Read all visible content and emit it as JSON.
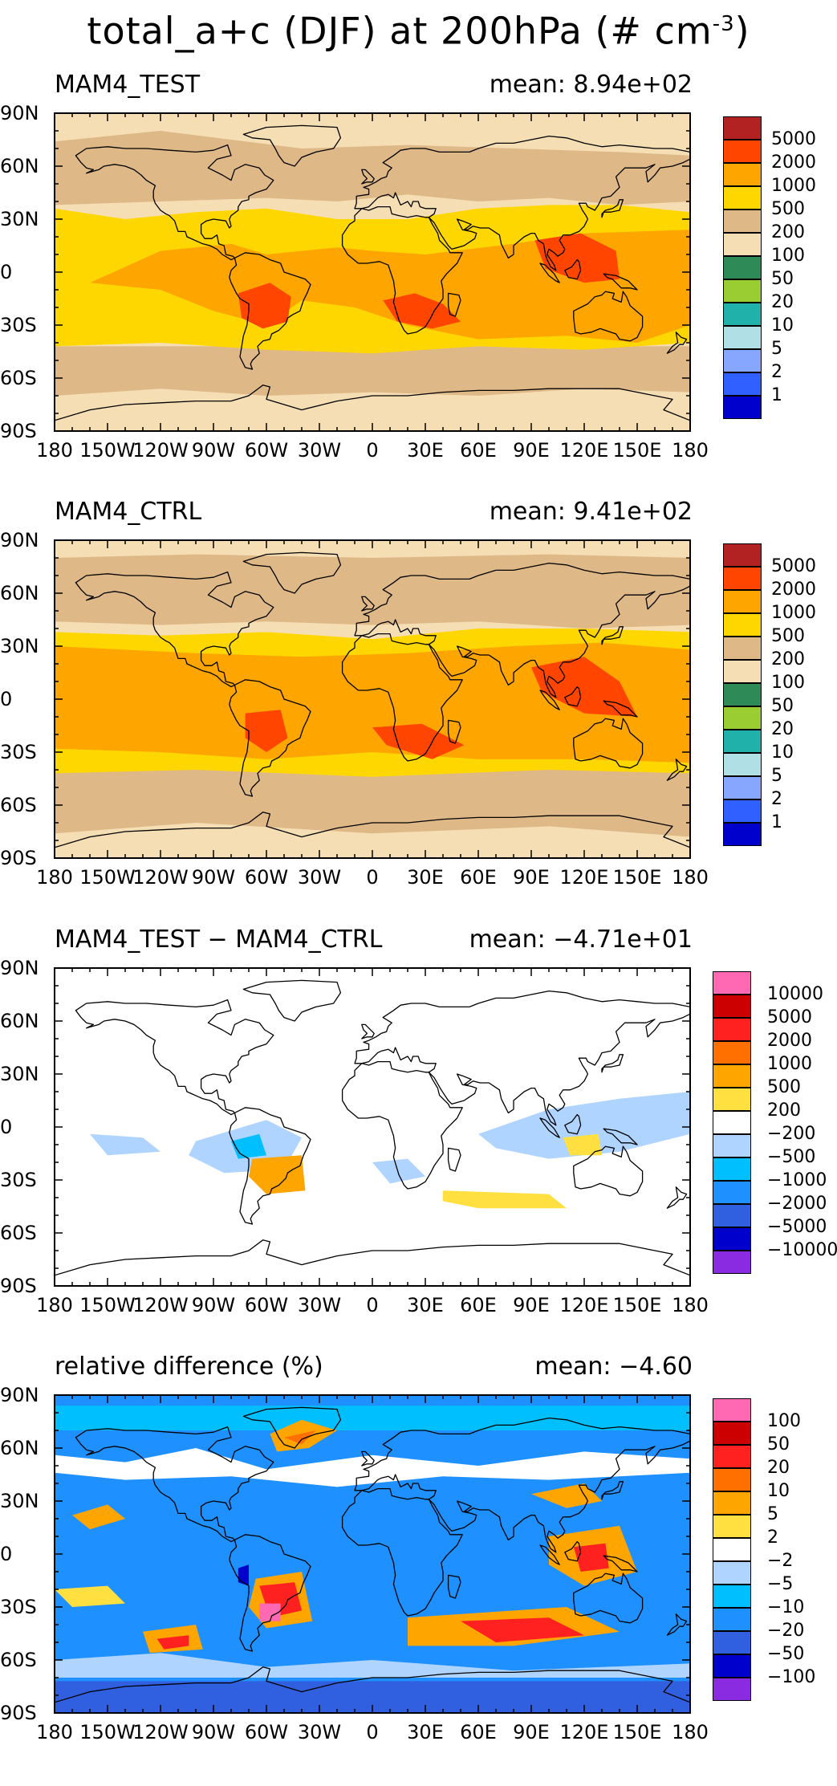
{
  "title": "total_a+c (DJF) at 200hPa (# cm",
  "title_sup": "-3",
  "title_tail": ")",
  "lat_ticks": [
    "90N",
    "60N",
    "30N",
    "0",
    "30S",
    "60S",
    "90S"
  ],
  "lon_ticks": [
    "180",
    "150W",
    "120W",
    "90W",
    "60W",
    "30W",
    "0",
    "30E",
    "60E",
    "90E",
    "120E",
    "150E",
    "180"
  ],
  "panels": [
    {
      "label": "MAM4_TEST",
      "mean": "mean: 8.94e+02",
      "colorbar": {
        "colors": [
          "#b22222",
          "#ff4500",
          "#ffa500",
          "#ffd700",
          "#deb887",
          "#f5deb3",
          "#2e8b57",
          "#9acd32",
          "#20b2aa",
          "#b0e0e6",
          "#87a7ff",
          "#3060ff",
          "#0000cd"
        ],
        "labels": [
          "5000",
          "2000",
          "1000",
          "500",
          "200",
          "100",
          "50",
          "20",
          "10",
          "5",
          "2",
          "1"
        ]
      }
    },
    {
      "label": "MAM4_CTRL",
      "mean": "mean: 9.41e+02",
      "colorbar": {
        "colors": [
          "#b22222",
          "#ff4500",
          "#ffa500",
          "#ffd700",
          "#deb887",
          "#f5deb3",
          "#2e8b57",
          "#9acd32",
          "#20b2aa",
          "#b0e0e6",
          "#87a7ff",
          "#3060ff",
          "#0000cd"
        ],
        "labels": [
          "5000",
          "2000",
          "1000",
          "500",
          "200",
          "100",
          "50",
          "20",
          "10",
          "5",
          "2",
          "1"
        ]
      }
    },
    {
      "label": "MAM4_TEST − MAM4_CTRL",
      "mean": "mean: −4.71e+01",
      "colorbar": {
        "colors": [
          "#ff69b4",
          "#cc0000",
          "#ff2020",
          "#ff7000",
          "#ffa500",
          "#ffe040",
          "#ffffff",
          "#aed4ff",
          "#00bfff",
          "#1e90ff",
          "#3060e0",
          "#0000cd",
          "#8a2be2"
        ],
        "labels": [
          "10000",
          "5000",
          "2000",
          "1000",
          "500",
          "200",
          "−200",
          "−500",
          "−1000",
          "−2000",
          "−5000",
          "−10000"
        ]
      }
    },
    {
      "label": "relative difference (%)",
      "mean": "mean: −4.60",
      "colorbar": {
        "colors": [
          "#ff69b4",
          "#cc0000",
          "#ff2020",
          "#ff7000",
          "#ffa500",
          "#ffe040",
          "#ffffff",
          "#aed4ff",
          "#00bfff",
          "#1e90ff",
          "#3060e0",
          "#0000cd",
          "#8a2be2"
        ],
        "labels": [
          "100",
          "50",
          "20",
          "10",
          "5",
          "2",
          "−2",
          "−5",
          "−10",
          "−20",
          "−50",
          "−100"
        ]
      }
    }
  ]
}
